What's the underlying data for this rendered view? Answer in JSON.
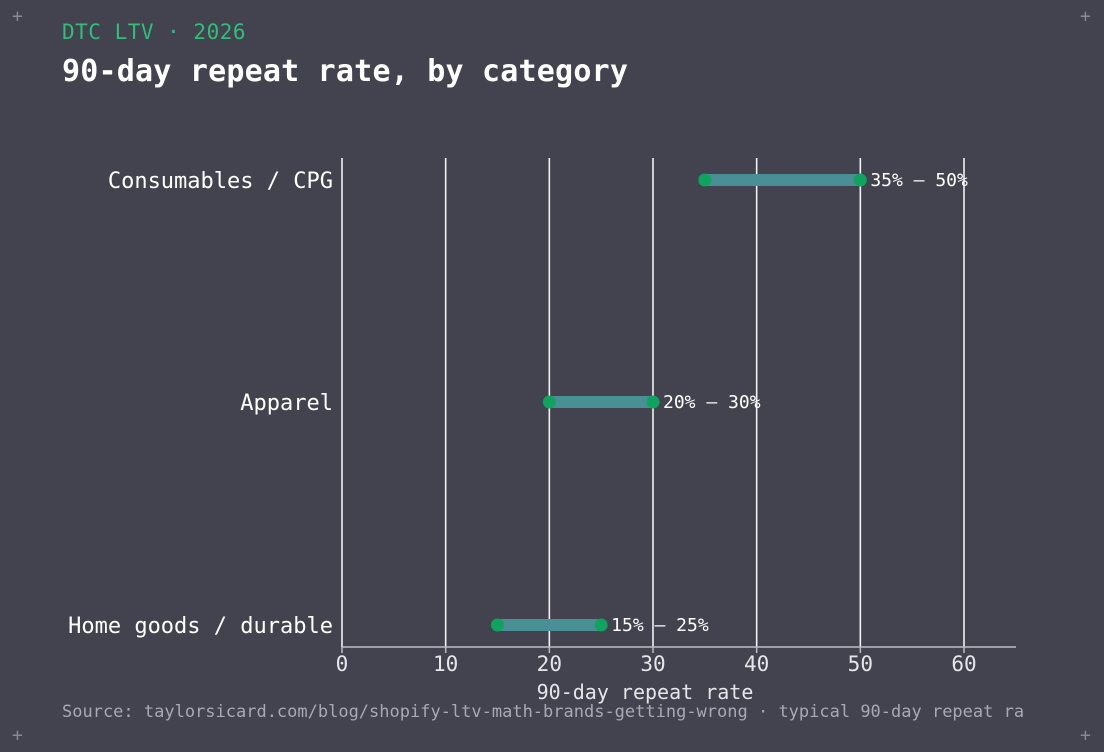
{
  "kicker": "DTC LTV · 2026",
  "title": "90-day repeat rate, by category",
  "source": "Source: taylorsicard.com/blog/shopify-ltv-math-brands-getting-wrong · typical 90-day repeat ra",
  "colors": {
    "background": "#43424f",
    "accent": "#2fbf7a",
    "range_bar": "#4a8f96",
    "endpoint": "#0fa35f",
    "grid": "#f2f2f2",
    "text": "#ffffff"
  },
  "chart_data": {
    "type": "range",
    "xlabel": "90-day repeat rate",
    "ylabel": "",
    "xlim": [
      0,
      65
    ],
    "x_ticks": [
      0,
      10,
      20,
      30,
      40,
      50,
      60
    ],
    "grid": true,
    "categories": [
      "Consumables / CPG",
      "Apparel",
      "Home goods / durable"
    ],
    "ranges": [
      {
        "category": "Consumables / CPG",
        "low": 35,
        "high": 50,
        "label": "35% – 50%"
      },
      {
        "category": "Apparel",
        "low": 20,
        "high": 30,
        "label": "20% – 30%"
      },
      {
        "category": "Home goods / durable",
        "low": 15,
        "high": 25,
        "label": "15% – 25%"
      }
    ]
  }
}
